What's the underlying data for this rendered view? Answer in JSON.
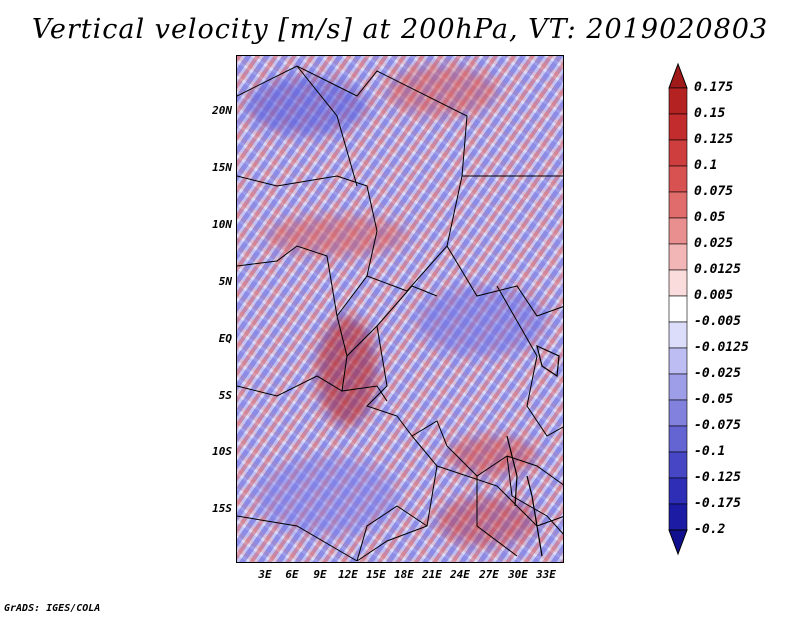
{
  "title": "Vertical velocity [m/s] at 200hPa, VT: 2019020803",
  "footer": "GrADS: IGES/COLA",
  "chart_data": {
    "type": "heatmap",
    "title": "Vertical velocity [m/s] at 200hPa, VT: 2019020803",
    "variable": "Vertical velocity",
    "units": "m/s",
    "level": "200hPa",
    "valid_time": "2019020803",
    "xlabel": "",
    "ylabel": "",
    "x_range": [
      0,
      35
    ],
    "y_range": [
      -20,
      24
    ],
    "x_ticks": [
      "3E",
      "6E",
      "9E",
      "12E",
      "15E",
      "18E",
      "21E",
      "24E",
      "27E",
      "30E",
      "33E"
    ],
    "x_tick_values": [
      3,
      6,
      9,
      12,
      15,
      18,
      21,
      24,
      27,
      30,
      33
    ],
    "y_ticks": [
      "20N",
      "15N",
      "10N",
      "5N",
      "EQ",
      "5S",
      "10S",
      "15S"
    ],
    "y_tick_values": [
      20,
      15,
      10,
      5,
      0,
      -5,
      -10,
      -15
    ],
    "colorbar": {
      "labels": [
        "0.175",
        "0.15",
        "0.125",
        "0.1",
        "0.075",
        "0.05",
        "0.025",
        "0.0125",
        "0.005",
        "-0.005",
        "-0.0125",
        "-0.025",
        "-0.05",
        "-0.075",
        "-0.1",
        "-0.125",
        "-0.175",
        "-0.2"
      ],
      "colors": [
        "#a11a1a",
        "#b52222",
        "#c22c2c",
        "#cf3e3e",
        "#d85252",
        "#e06c6c",
        "#e98f8f",
        "#f3b6b6",
        "#fbdcdc",
        "#ffffff",
        "#dcdcfb",
        "#bdbdf3",
        "#9e9ee8",
        "#8282de",
        "#6464d3",
        "#4747c6",
        "#2e2eb6",
        "#1b1ba3",
        "#10108e"
      ],
      "extend": "both"
    }
  }
}
